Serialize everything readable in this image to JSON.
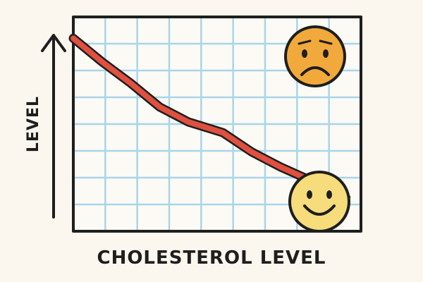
{
  "chart_data": {
    "type": "line",
    "title": "",
    "xlabel": "CHOLESTEROL LEVEL",
    "ylabel": "LEVEL",
    "grid": true,
    "xlim": [
      0,
      1
    ],
    "ylim": [
      0,
      1
    ],
    "series": [
      {
        "x": [
          0,
          0.1,
          0.2,
          0.3,
          0.4,
          0.52,
          0.62,
          0.72,
          0.82,
          0.96
        ],
        "y": [
          0.9,
          0.79,
          0.69,
          0.58,
          0.51,
          0.46,
          0.37,
          0.3,
          0.24,
          0.16
        ]
      }
    ],
    "annotations": [
      {
        "icon": "sad-face-icon",
        "color": "#f2a93b"
      },
      {
        "icon": "happy-face-icon",
        "color": "#f6dc7a"
      }
    ],
    "colors": {
      "line": "#e0503f",
      "grid": "#a9d5ea",
      "frame": "#1e1e1e",
      "background": "#fbf7ee"
    }
  }
}
